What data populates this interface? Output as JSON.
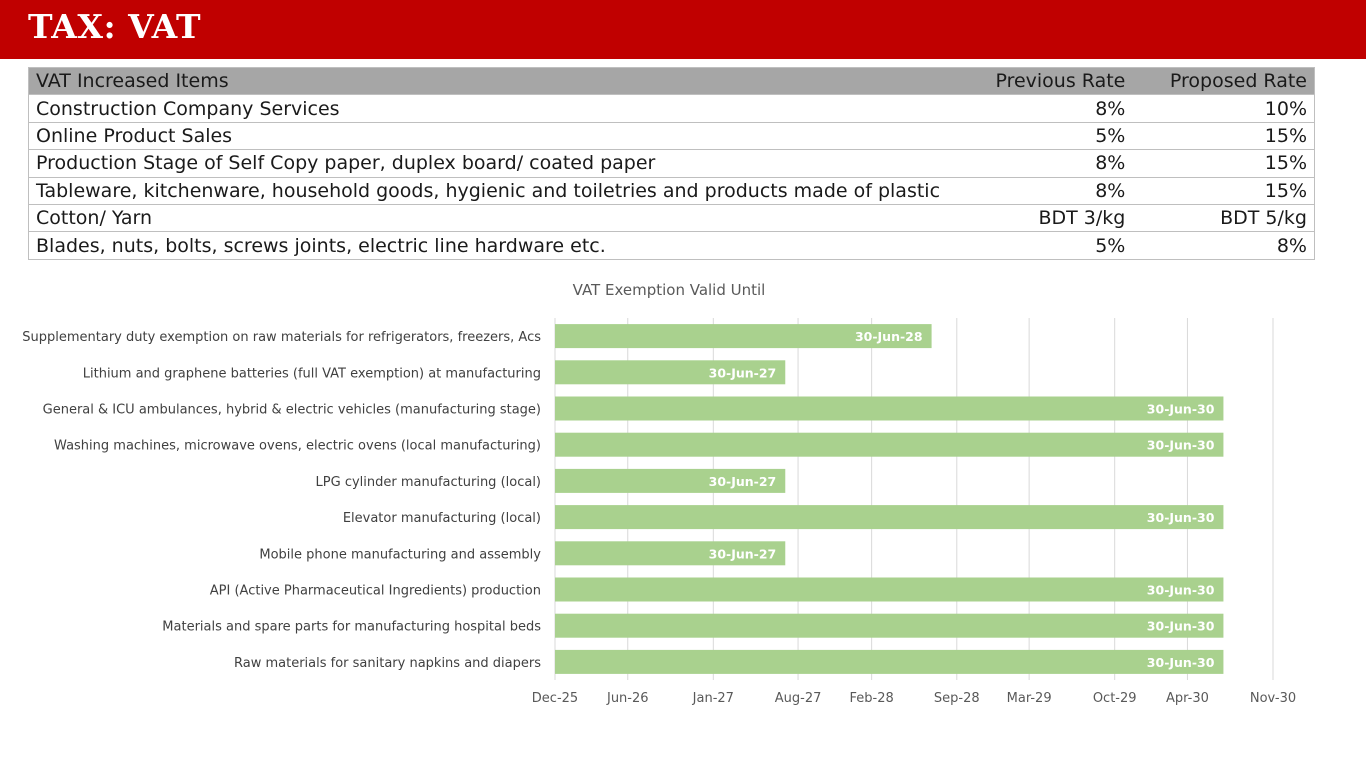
{
  "header": {
    "title": "TAX: VAT"
  },
  "table": {
    "columns": [
      "VAT Increased Items",
      "Previous Rate",
      "Proposed Rate"
    ],
    "rows": [
      [
        "Construction Company Services",
        "8%",
        "10%"
      ],
      [
        "Online Product Sales",
        "5%",
        "15%"
      ],
      [
        "Production Stage of Self Copy paper, duplex board/ coated paper",
        "8%",
        "15%"
      ],
      [
        "Tableware, kitchenware, household goods, hygienic and toiletries and products made of plastic",
        "8%",
        "15%"
      ],
      [
        "Cotton/ Yarn",
        "BDT 3/kg",
        "BDT 5/kg"
      ],
      [
        "Blades, nuts, bolts, screws joints, electric line hardware etc.",
        "5%",
        "8%"
      ]
    ]
  },
  "chart_data": {
    "type": "bar",
    "orientation": "horizontal",
    "title": "VAT Exemption Valid Until",
    "categories": [
      "Supplementary duty exemption on raw materials for refrigerators, freezers, Acs",
      "Lithium and graphene batteries (full VAT exemption) at manufacturing",
      "General & ICU ambulances, hybrid & electric vehicles (manufacturing stage)",
      "Washing machines, microwave ovens, electric ovens (local manufacturing)",
      "LPG cylinder manufacturing (local)",
      "Elevator manufacturing (local)",
      "Mobile phone manufacturing and assembly",
      "API (Active Pharmaceutical Ingredients) production",
      "Materials and spare parts for manufacturing hospital beds",
      "Raw materials for sanitary napkins and diapers"
    ],
    "values": [
      "2028-06-30",
      "2027-06-30",
      "2030-06-30",
      "2030-06-30",
      "2027-06-30",
      "2030-06-30",
      "2027-06-30",
      "2030-06-30",
      "2030-06-30",
      "2030-06-30"
    ],
    "data_labels": [
      "30-Jun-28",
      "30-Jun-27",
      "30-Jun-30",
      "30-Jun-30",
      "30-Jun-27",
      "30-Jun-30",
      "30-Jun-27",
      "30-Jun-30",
      "30-Jun-30",
      "30-Jun-30"
    ],
    "x_ticks": [
      "2025-12-01",
      "2026-06-01",
      "2027-01-01",
      "2027-08-01",
      "2028-02-01",
      "2028-09-01",
      "2029-03-01",
      "2029-10-01",
      "2030-04-01",
      "2030-11-01"
    ],
    "x_tick_labels": [
      "Dec-25",
      "Jun-26",
      "Jan-27",
      "Aug-27",
      "Feb-28",
      "Sep-28",
      "Mar-29",
      "Oct-29",
      "Apr-30",
      "Nov-30"
    ],
    "xlim": [
      "2025-12-01",
      "2030-11-01"
    ],
    "grid": "vertical",
    "bar_color": "#a9d18e",
    "label_color": "#ffffff"
  }
}
